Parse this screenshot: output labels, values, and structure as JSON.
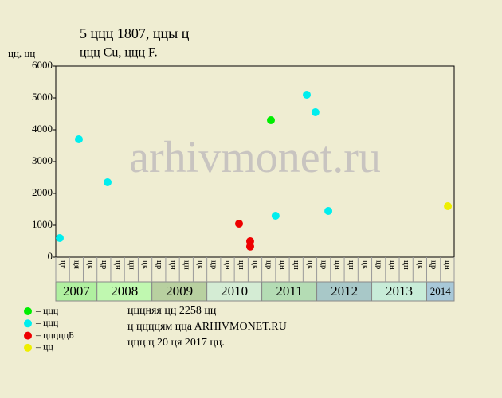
{
  "chart_data": {
    "type": "scatter",
    "title": "5 ццц 1807, ццы ц",
    "subtitle": "ццц Cu, ццц F.",
    "y_label": "цц, цц",
    "watermark": "arhivmonet.ru",
    "ylim": [
      0,
      6000
    ],
    "yticks": [
      0,
      1000,
      2000,
      3000,
      4000,
      5000,
      6000
    ],
    "xlim": [
      0,
      29
    ],
    "groups": [
      {
        "year": "2007",
        "color": "#b0f0a0",
        "quarters": [
          "цг",
          "ця",
          "цк"
        ]
      },
      {
        "year": "2008",
        "color": "#c0f8b0",
        "quarters": [
          "цр",
          "цн",
          "цн",
          "цк"
        ]
      },
      {
        "year": "2009",
        "color": "#b8d0a0",
        "quarters": [
          "цр",
          "цн",
          "цн",
          "цк"
        ]
      },
      {
        "year": "2010",
        "color": "#d4ecd4",
        "quarters": [
          "цр",
          "цн",
          "цн",
          "цк"
        ]
      },
      {
        "year": "2011",
        "color": "#b4dcb4",
        "quarters": [
          "цр",
          "цн",
          "цн",
          "цк"
        ]
      },
      {
        "year": "2012",
        "color": "#a8c8c8",
        "quarters": [
          "цр",
          "цн",
          "цн",
          "цк"
        ]
      },
      {
        "year": "2013",
        "color": "#c8ecd8",
        "quarters": [
          "цр",
          "цн",
          "цн",
          "цк"
        ]
      },
      {
        "year": "2014",
        "color": "#a8c8d8",
        "quarters": [
          "цр",
          "цн"
        ]
      }
    ],
    "series": [
      {
        "name": "– ццц",
        "color": "#00ee00",
        "x": [
          15.66
        ],
        "values": [
          4300
        ]
      },
      {
        "name": "– ццц",
        "color": "#00eeee",
        "x": [
          0.29,
          1.68,
          3.77,
          16.0,
          18.27,
          18.9,
          19.84
        ],
        "values": [
          600,
          3700,
          2350,
          1300,
          5100,
          4550,
          1450
        ]
      },
      {
        "name": "– цццццБ",
        "color": "#ee0000",
        "x": [
          13.34,
          14.15,
          14.15
        ],
        "values": [
          1050,
          500,
          330
        ]
      },
      {
        "name": "– цц",
        "color": "#eeee00",
        "x": [
          28.54
        ],
        "values": [
          1600
        ]
      }
    ],
    "notes": [
      "цццняя цц 2258 цц",
      "ц ццццям ццa ARHIVMONET.RU",
      "ццц ц 20 ця 2017 цц."
    ]
  }
}
